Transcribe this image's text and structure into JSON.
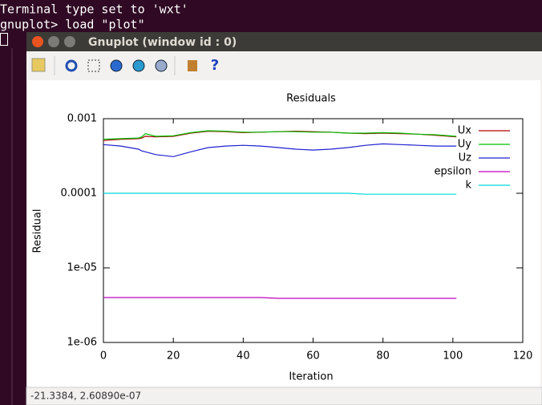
{
  "terminal": {
    "lines": [
      "Terminal type set to 'wxt'",
      "gnuplot> load \"plot\""
    ]
  },
  "window": {
    "title": "Gnuplot (window id : 0)",
    "status": "-21.3384,  2.60890e-07"
  },
  "chart_data": {
    "type": "line",
    "title": "Residuals",
    "x_label": "Iteration",
    "y_label": "Residual",
    "x": [
      0,
      5,
      10,
      11,
      12,
      15,
      20,
      25,
      30,
      35,
      40,
      45,
      50,
      55,
      60,
      65,
      70,
      75,
      80,
      85,
      90,
      95,
      101
    ],
    "series": [
      {
        "name": "Ux",
        "color": "#b00000",
        "values": [
          0.00051,
          0.00053,
          0.00054,
          0.00055,
          0.00058,
          0.00057,
          0.00058,
          0.00064,
          0.00068,
          0.00067,
          0.00065,
          0.00066,
          0.00067,
          0.00068,
          0.00067,
          0.00066,
          0.00064,
          0.00063,
          0.00064,
          0.00063,
          0.00062,
          0.0006,
          0.00057
        ]
      },
      {
        "name": "Uy",
        "color": "#00c000",
        "values": [
          0.00053,
          0.00054,
          0.00055,
          0.00057,
          0.00063,
          0.00058,
          0.00059,
          0.00065,
          0.00069,
          0.00068,
          0.00066,
          0.00066,
          0.00067,
          0.00067,
          0.00066,
          0.00066,
          0.00064,
          0.00064,
          0.00065,
          0.00064,
          0.00062,
          0.00061,
          0.00058
        ]
      },
      {
        "name": "Uz",
        "color": "#2020d0",
        "values": [
          0.00045,
          0.00043,
          0.00039,
          0.00037,
          0.00036,
          0.00033,
          0.00031,
          0.00036,
          0.00041,
          0.00043,
          0.00044,
          0.00043,
          0.00041,
          0.00039,
          0.00038,
          0.00039,
          0.00041,
          0.00044,
          0.00046,
          0.00045,
          0.00044,
          0.00043,
          0.00043
        ]
      },
      {
        "name": "epsilon",
        "color": "#c000c0",
        "values": [
          4e-06,
          4e-06,
          4e-06,
          4e-06,
          4e-06,
          4e-06,
          4e-06,
          4e-06,
          4e-06,
          4e-06,
          4e-06,
          4e-06,
          3.9e-06,
          3.9e-06,
          3.9e-06,
          3.9e-06,
          3.9e-06,
          3.9e-06,
          3.9e-06,
          3.9e-06,
          3.9e-06,
          3.9e-06,
          3.9e-06
        ]
      },
      {
        "name": "k",
        "color": "#00d8d8",
        "values": [
          0.0001,
          0.0001,
          0.0001,
          0.0001,
          0.0001,
          0.0001,
          0.0001,
          0.0001,
          0.0001,
          0.0001,
          0.0001,
          0.0001,
          0.0001,
          0.0001,
          0.0001,
          0.0001,
          0.0001,
          9.7e-05,
          9.7e-05,
          9.7e-05,
          9.7e-05,
          9.7e-05,
          9.7e-05
        ]
      }
    ],
    "xlim": [
      0,
      120
    ],
    "xticks": [
      0,
      20,
      40,
      60,
      80,
      100,
      120
    ],
    "ylim": [
      1e-06,
      0.001
    ],
    "log_y": true,
    "yticks": [
      {
        "value": 1e-06,
        "label": "1e-06"
      },
      {
        "value": 1e-05,
        "label": "1e-05"
      },
      {
        "value": 0.0001,
        "label": "0.0001"
      },
      {
        "value": 0.001,
        "label": "0.001"
      }
    ],
    "grid": false,
    "legend": "top-right"
  }
}
